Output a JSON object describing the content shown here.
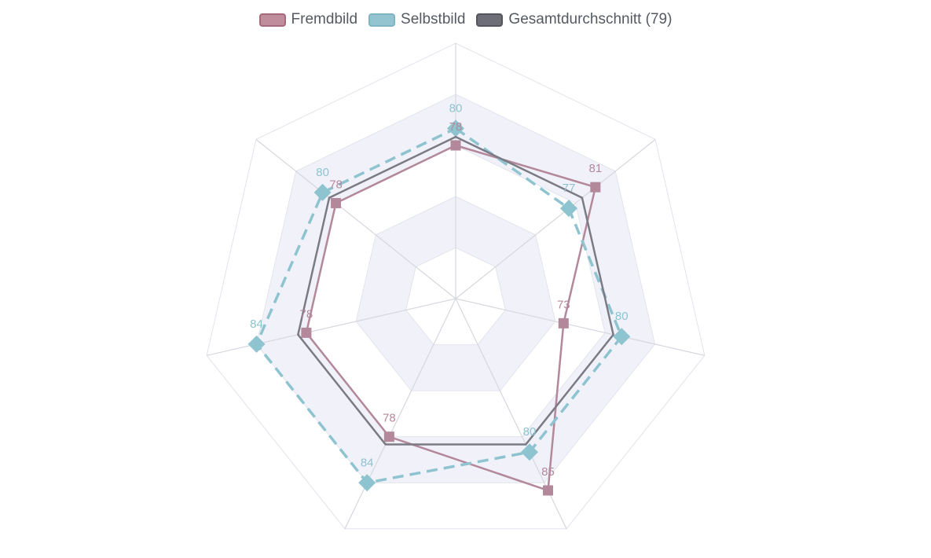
{
  "legend": {
    "items": [
      {
        "label": "Fremdbild",
        "fill": "#c08d9c",
        "border": "#a56b7d"
      },
      {
        "label": "Selbstbild",
        "fill": "#95c4d1",
        "border": "#7fb4c3"
      },
      {
        "label": "Gesamtdurchschnitt (79)",
        "fill": "#6e6e78",
        "border": "#55555e"
      }
    ]
  },
  "chart_data": {
    "type": "radar",
    "axes": 7,
    "r_max": 90,
    "r_min": 60,
    "grid_rings": 5,
    "series": [
      {
        "name": "Fremdbild",
        "values": [
          78,
          81,
          73,
          85,
          78,
          78,
          78
        ],
        "color": "#b3889a",
        "marker": "square",
        "line": "solid",
        "labels": [
          "78",
          "81",
          "73",
          "85",
          "78",
          "78",
          "78"
        ]
      },
      {
        "name": "Selbstbild",
        "values": [
          80,
          77,
          80,
          80,
          84,
          84,
          80
        ],
        "color": "#8ec3d0",
        "marker": "diamond",
        "line": "dashed",
        "labels": [
          "80",
          "77",
          "80",
          "80",
          "84",
          "84",
          "80"
        ]
      },
      {
        "name": "Gesamtdurchschnitt (79)",
        "values": [
          79,
          79,
          79,
          79,
          79,
          79,
          79
        ],
        "color": "#7b7b85",
        "marker": "none",
        "line": "solid",
        "labels": []
      }
    ]
  }
}
